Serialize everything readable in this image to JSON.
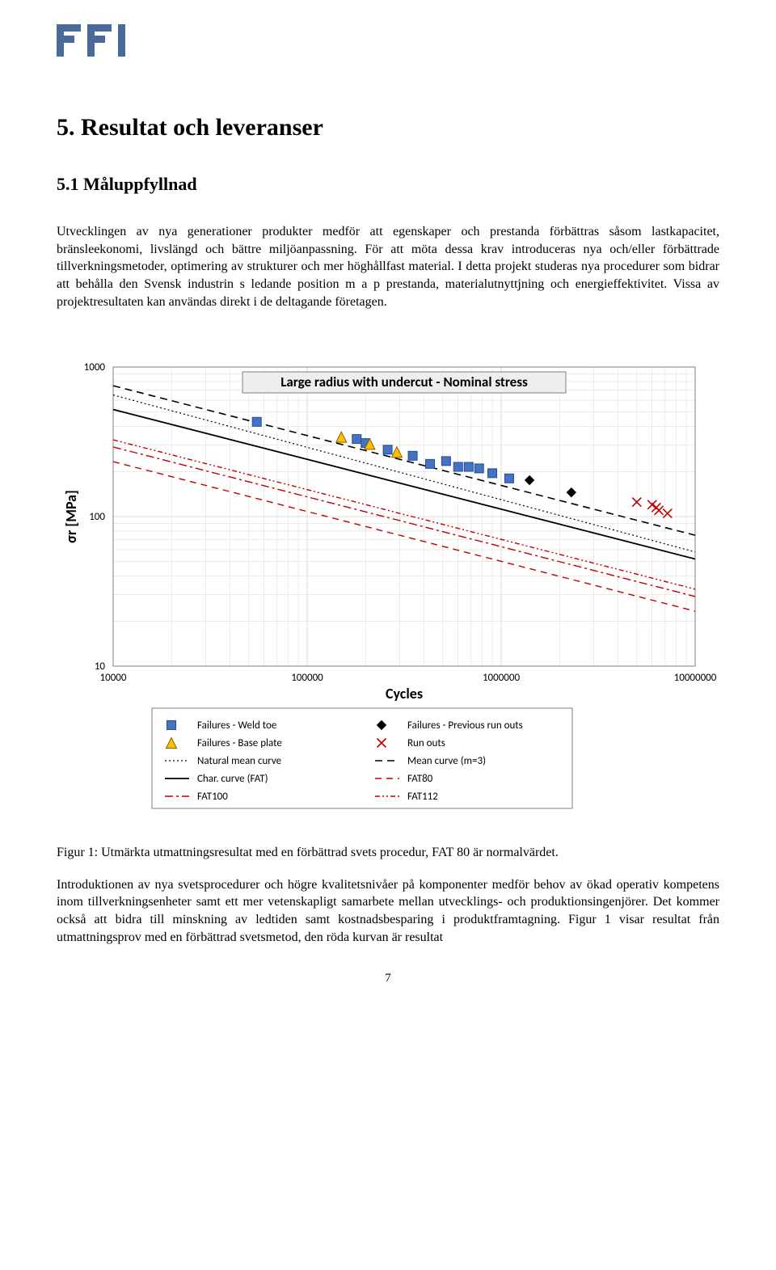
{
  "logo": {
    "text": "FFI",
    "color": "#4a6a9a"
  },
  "headings": {
    "section": "5. Resultat och leveranser",
    "subsection": "5.1 Måluppfyllnad"
  },
  "paragraphs": {
    "p1": "Utvecklingen av nya generationer produkter medför att egenskaper och prestanda förbättras såsom lastkapacitet, bränsleekonomi, livslängd och bättre miljöanpassning. För att möta dessa krav introduceras nya och/eller förbättrade tillverkningsmetoder, optimering av strukturer och mer höghållfast material. I detta projekt studeras nya procedurer som bidrar att behålla den Svensk industrin s ledande position m a p prestanda, materialutnyttjning och energieffektivitet. Vissa av projektresultaten kan användas direkt i de deltagande företagen.",
    "caption": "Figur 1: Utmärkta utmattningsresultat med en förbättrad svets procedur, FAT 80 är normalvärdet.",
    "p2": "Introduktionen av nya svetsprocedurer och högre kvalitetsnivåer på komponenter medför behov av ökad operativ kompetens inom tillverkningsenheter samt ett mer vetenskapligt samarbete mellan utvecklings- och produktionsingenjörer. Det kommer också att bidra till minskning av ledtiden samt kostnadsbesparing i produktframtagning. Figur 1 visar resultat från utmattningsprov med en förbättrad svetsmetod, den röda kurvan är resultat"
  },
  "page_number": "7",
  "chart": {
    "type": "scatter-loglog",
    "title": "Large radius with undercut - Nominal stress",
    "title_fontsize": 17,
    "title_bg": "#eeeeee",
    "title_border": "#7f7f7f",
    "xlabel": "Cycles",
    "ylabel": "σr [MPa]",
    "label_fontsize": 18,
    "xlim": [
      10000,
      10000000
    ],
    "ylim": [
      10,
      1000
    ],
    "xtick_labels": [
      "10000",
      "100000",
      "1000000",
      "10000000"
    ],
    "ytick_labels": [
      "10",
      "100",
      "1000"
    ],
    "tick_fontsize": 13,
    "background_color": "#ffffff",
    "grid_color": "#d9d9d9",
    "axis_color": "#7f7f7f",
    "lines": {
      "natmean": {
        "label": "Natural mean curve",
        "color": "#000000",
        "dash": "2 3",
        "width": 1.2,
        "points": [
          [
            10000,
            650
          ],
          [
            10000000,
            58
          ]
        ]
      },
      "mean3": {
        "label": "Mean curve (m=3)",
        "color": "#000000",
        "dash": "9 6",
        "width": 1.6,
        "points": [
          [
            10000,
            750
          ],
          [
            10000000,
            75
          ]
        ]
      },
      "char": {
        "label": "Char. curve (FAT)",
        "color": "#000000",
        "dash": "",
        "width": 1.8,
        "points": [
          [
            10000,
            520
          ],
          [
            10000000,
            52
          ]
        ]
      },
      "fat80": {
        "label": "FAT80",
        "color": "#c00000",
        "dash": "8 6",
        "width": 1.4,
        "points": [
          [
            10000,
            233
          ],
          [
            10000000,
            23.3
          ]
        ]
      },
      "fat100": {
        "label": "FAT100",
        "color": "#c00000",
        "dash": "10 4 3 4",
        "width": 1.4,
        "points": [
          [
            10000,
            292
          ],
          [
            10000000,
            29.2
          ]
        ]
      },
      "fat112": {
        "label": "FAT112",
        "color": "#c00000",
        "dash": "6 3 2 3 2 3",
        "width": 1.4,
        "points": [
          [
            10000,
            326
          ],
          [
            10000000,
            32.7
          ]
        ]
      }
    },
    "series": {
      "weldtoe": {
        "label": "Failures - Weld toe",
        "marker": "square",
        "color": "#4472c4",
        "size": 11,
        "points": [
          [
            55000,
            430
          ],
          [
            180000,
            330
          ],
          [
            200000,
            310
          ],
          [
            260000,
            280
          ],
          [
            350000,
            255
          ],
          [
            430000,
            225
          ],
          [
            520000,
            235
          ],
          [
            600000,
            215
          ],
          [
            680000,
            215
          ],
          [
            770000,
            210
          ],
          [
            900000,
            195
          ],
          [
            1100000,
            180
          ]
        ]
      },
      "baseplate": {
        "label": "Failures - Base plate",
        "marker": "triangle",
        "color": "#ffc000",
        "stroke": "#7f6000",
        "size": 13,
        "points": [
          [
            150000,
            340
          ],
          [
            210000,
            305
          ],
          [
            290000,
            270
          ]
        ]
      },
      "prevrunout": {
        "label": "Failures - Previous run outs",
        "marker": "diamond",
        "color": "#000000",
        "size": 11,
        "points": [
          [
            1400000,
            175
          ],
          [
            2300000,
            145
          ]
        ]
      },
      "runouts": {
        "label": "Run outs",
        "marker": "x",
        "color": "#c00000",
        "size": 11,
        "points": [
          [
            5000000,
            125
          ],
          [
            6000000,
            120
          ],
          [
            6300000,
            115
          ],
          [
            6500000,
            110
          ],
          [
            7200000,
            105
          ]
        ]
      }
    },
    "legend": {
      "fontsize": 13,
      "border": "#7f7f7f",
      "bg": "#ffffff",
      "cols": 2,
      "items": [
        {
          "type": "marker",
          "ref": "weldtoe"
        },
        {
          "type": "marker",
          "ref": "prevrunout"
        },
        {
          "type": "marker",
          "ref": "baseplate"
        },
        {
          "type": "marker",
          "ref": "runouts"
        },
        {
          "type": "line",
          "ref": "natmean"
        },
        {
          "type": "line",
          "ref": "mean3"
        },
        {
          "type": "line",
          "ref": "char"
        },
        {
          "type": "line",
          "ref": "fat80"
        },
        {
          "type": "line",
          "ref": "fat100"
        },
        {
          "type": "line",
          "ref": "fat112"
        }
      ]
    }
  }
}
